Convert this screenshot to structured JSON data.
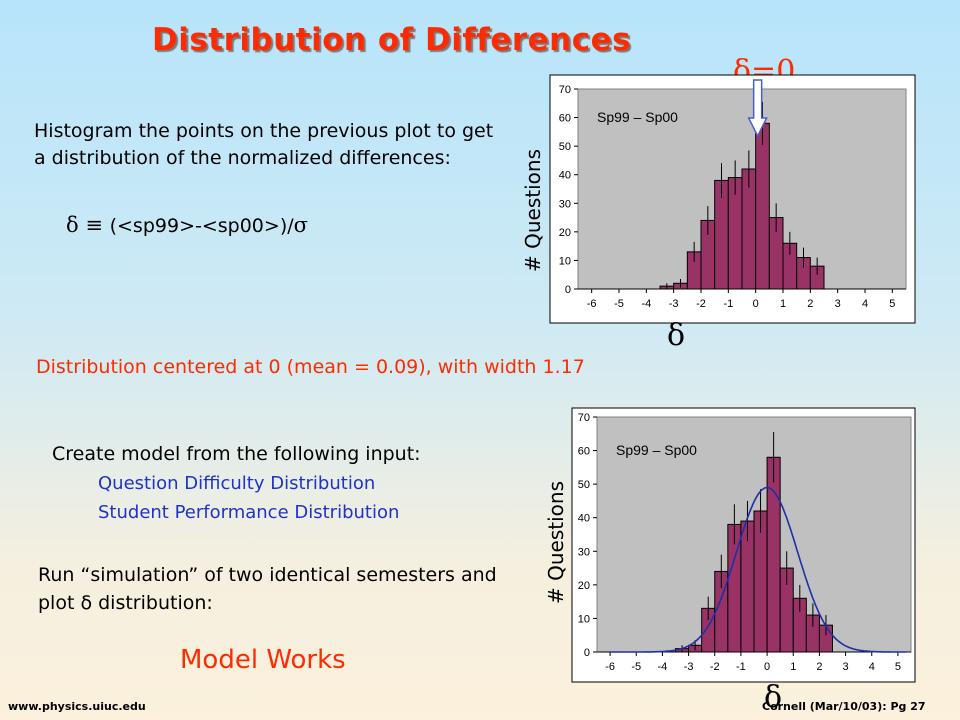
{
  "slide": {
    "title": "Distribution of Differences",
    "intro": "Histogram the points on the previous plot to get a distribution of the normalized differences:",
    "formula_symbols": "δ ≡ ",
    "formula_body": "(<sp99>-<sp00>)/",
    "formula_sigma": "σ",
    "summary": "Distribution centered at 0 (mean = 0.09), with width 1.17",
    "model_heading": "Create model from the following input:",
    "model_inputs": [
      "Question Difficulty Distribution",
      "Student Performance Distribution"
    ],
    "run_text": "Run “simulation” of two identical semesters and plot δ distribution:",
    "conclusion": "Model Works",
    "footer_left": "www.physics.uiuc.edu",
    "footer_right": "Cornell (Mar/10/03): Pg 27",
    "annotation": "δ=0",
    "colors": {
      "title": "#ff2b00",
      "accent_text": "#1e33c8",
      "bar_fill": "#993366",
      "plot_bg": "#c0c0c0",
      "fit_curve": "#1f2fa8"
    }
  },
  "chart_data": [
    {
      "type": "bar",
      "legend_text": "Sp99 – Sp00",
      "ylabel": "# Questions",
      "xlabel": "δ",
      "x_ticks": [
        "-6",
        "-5",
        "-4",
        "-3",
        "-2",
        "-1",
        "0",
        "1",
        "2",
        "3",
        "4",
        "5"
      ],
      "y_ticks": [
        "0",
        "10",
        "20",
        "30",
        "40",
        "50",
        "60",
        "70"
      ],
      "xlim": [
        -6.5,
        5.5
      ],
      "ylim": [
        0,
        70
      ],
      "bin_width": 0.5,
      "bin_centers": [
        -3.25,
        -2.75,
        -2.25,
        -1.75,
        -1.25,
        -0.75,
        -0.25,
        0.25,
        0.75,
        1.25,
        1.75,
        2.25
      ],
      "values": [
        1,
        2,
        13,
        24,
        38,
        39,
        42,
        58,
        25,
        16,
        11,
        8
      ],
      "errors": [
        1,
        1.5,
        3.5,
        5,
        6,
        6,
        6.5,
        7.5,
        5,
        4,
        3.5,
        3
      ],
      "grid": false,
      "annotation_x": 0
    },
    {
      "type": "bar",
      "legend_text": "Sp99 – Sp00",
      "ylabel": "# Questions",
      "xlabel": "δ",
      "x_ticks": [
        "-6",
        "-5",
        "-4",
        "-3",
        "-2",
        "-1",
        "0",
        "1",
        "2",
        "3",
        "4",
        "5"
      ],
      "y_ticks": [
        "0",
        "10",
        "20",
        "30",
        "40",
        "50",
        "60",
        "70"
      ],
      "xlim": [
        -6.5,
        5.5
      ],
      "ylim": [
        0,
        70
      ],
      "bin_width": 0.5,
      "bin_centers": [
        -3.25,
        -2.75,
        -2.25,
        -1.75,
        -1.25,
        -0.75,
        -0.25,
        0.25,
        0.75,
        1.25,
        1.75,
        2.25
      ],
      "values": [
        1,
        2,
        13,
        24,
        38,
        39,
        42,
        58,
        25,
        16,
        11,
        8
      ],
      "errors": [
        1,
        1.5,
        3.5,
        5,
        6,
        6,
        6.5,
        7.5,
        5,
        4,
        3.5,
        3
      ],
      "grid": false,
      "fit_curve": {
        "type": "gaussian",
        "peak": 49,
        "mean": 0,
        "sigma": 1.17
      }
    }
  ]
}
